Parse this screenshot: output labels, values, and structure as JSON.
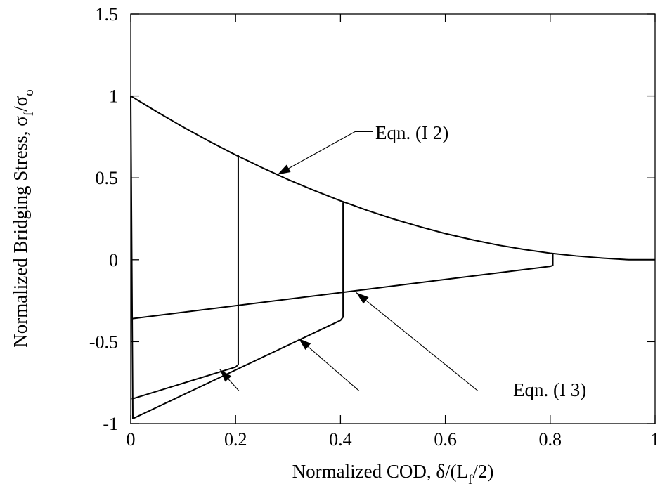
{
  "chart_data": {
    "type": "line",
    "xlim": [
      0,
      1
    ],
    "ylim": [
      -1,
      1.5
    ],
    "x_ticks": [
      "0",
      "0.2",
      "0.4",
      "0.6",
      "0.8",
      "1"
    ],
    "y_ticks": [
      "-1",
      "-0.5",
      "0",
      "0.5",
      "1",
      "1.5"
    ],
    "xlabel": {
      "prefix": "Normalized COD,  δ/(L",
      "sub": "f",
      "suffix": "/2)"
    },
    "ylabel": {
      "prefix": "Normalized Bridging Stress,  σ",
      "sub1": "f",
      "mid": "/σ",
      "sub2": "o"
    },
    "grid": false,
    "annotations": [
      {
        "text": "Eqn. (I 2)",
        "points_to": [
          [
            0.28,
            0.52
          ]
        ]
      },
      {
        "text": "Eqn. (I 3)",
        "points_to": [
          [
            0.17,
            -0.67
          ],
          [
            0.32,
            -0.48
          ],
          [
            0.43,
            -0.2
          ]
        ]
      }
    ],
    "series": [
      {
        "x": [
          0,
          0.05,
          0.1,
          0.15,
          0.2,
          0.25,
          0.3,
          0.35,
          0.4,
          0.45,
          0.5,
          0.55,
          0.6,
          0.65,
          0.7,
          0.75,
          0.8,
          0.85,
          0.9,
          0.95,
          1.0
        ],
        "y": [
          1.0,
          0.903,
          0.81,
          0.723,
          0.64,
          0.563,
          0.49,
          0.423,
          0.36,
          0.303,
          0.25,
          0.203,
          0.16,
          0.123,
          0.09,
          0.063,
          0.04,
          0.023,
          0.01,
          0.0,
          0.0
        ]
      },
      {
        "x": [
          0,
          0.004,
          0.4,
          0.405,
          0.405
        ],
        "y": [
          1.0,
          -0.97,
          -0.37,
          -0.35,
          0.35
        ]
      },
      {
        "x": [
          0.002,
          0.2,
          0.205,
          0.205
        ],
        "y": [
          -0.85,
          -0.655,
          -0.64,
          0.64
        ]
      },
      {
        "x": [
          0.002,
          0.8,
          0.805,
          0.805
        ],
        "y": [
          -0.36,
          -0.04,
          -0.035,
          0.035
        ]
      }
    ]
  }
}
